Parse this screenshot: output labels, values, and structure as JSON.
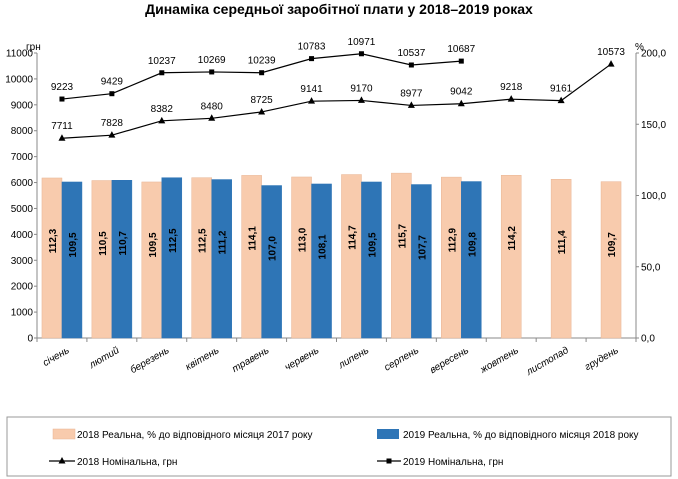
{
  "chart_data": {
    "type": "bar",
    "title": "Динаміка середньої заробітної плати у 2018–2019 роках",
    "left_axis_unit": "грн",
    "right_axis_unit": "%",
    "left_ylim": [
      0,
      11000
    ],
    "left_ticks": [
      "0",
      "1000",
      "2000",
      "3000",
      "4000",
      "5000",
      "6000",
      "7000",
      "8000",
      "9000",
      "10000",
      "11000"
    ],
    "right_ylim": [
      0,
      200
    ],
    "right_ticks": [
      "0,0",
      "50,0",
      "100,0",
      "150,0",
      "200,0"
    ],
    "categories": [
      "січень",
      "лютий",
      "березень",
      "квітень",
      "травень",
      "червень",
      "липень",
      "серпень",
      "вересень",
      "жовтень",
      "листопад",
      "грудень"
    ],
    "bar_series": [
      {
        "name": "2018 Реальна, % до відповідного місяця 2017 року",
        "color": "#F8CBAD",
        "values": [
          112.3,
          110.5,
          109.5,
          112.5,
          114.1,
          113.0,
          114.7,
          115.7,
          112.9,
          114.2,
          111.4,
          109.7
        ],
        "labels": [
          "112,3",
          "110,5",
          "109,5",
          "112,5",
          "114,1",
          "113,0",
          "114,7",
          "115,7",
          "112,9",
          "114,2",
          "111,4",
          "109,7"
        ]
      },
      {
        "name": "2019 Реальна, % до відповідного місяця 2018 року",
        "color": "#2E75B6",
        "values": [
          109.5,
          110.7,
          112.5,
          111.2,
          107.0,
          108.1,
          109.5,
          107.7,
          109.8,
          null,
          null,
          null
        ],
        "labels": [
          "109,5",
          "110,7",
          "112,5",
          "111,2",
          "107,0",
          "108,1",
          "109,5",
          "107,7",
          "109,8",
          "",
          "",
          ""
        ]
      }
    ],
    "line_series": [
      {
        "name": "2018 Номінальна, грн",
        "marker": "triangle",
        "color": "#000000",
        "values": [
          7711,
          7828,
          8382,
          8480,
          8725,
          9141,
          9170,
          8977,
          9042,
          9218,
          9161,
          10573
        ],
        "labels": [
          "7711",
          "7828",
          "8382",
          "8480",
          "8725",
          "9141",
          "9170",
          "8977",
          "9042",
          "9218",
          "9161",
          "10573"
        ]
      },
      {
        "name": "2019 Номінальна, грн",
        "marker": "square",
        "color": "#000000",
        "values": [
          9223,
          9429,
          10237,
          10269,
          10239,
          10783,
          10971,
          10537,
          10687,
          null,
          null,
          null
        ],
        "labels": [
          "9223",
          "9429",
          "10237",
          "10269",
          "10239",
          "10783",
          "10971",
          "10537",
          "10687",
          "",
          "",
          ""
        ]
      }
    ],
    "legend_position": "bottom",
    "grid": false
  }
}
